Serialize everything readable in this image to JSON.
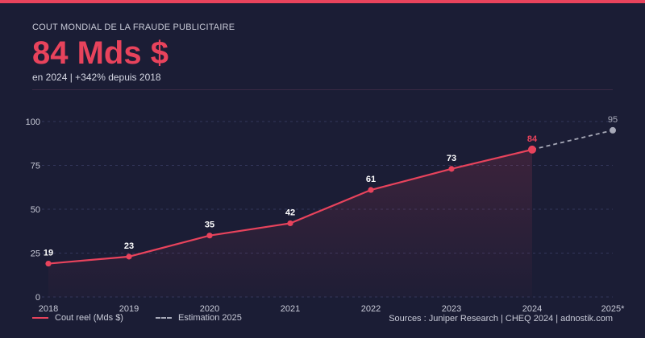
{
  "header": {
    "kicker": "COUT MONDIAL DE LA FRAUDE PUBLICITAIRE",
    "headline": "84 Mds $",
    "subline": "en 2024  |  +342% depuis 2018"
  },
  "colors": {
    "accent": "#e8435c",
    "estimate": "#a7a9b8",
    "background": "#1b1d35"
  },
  "legend": {
    "actual_label": "Cout reel (Mds $)",
    "estimate_label": "Estimation 2025"
  },
  "sources": "Sources : Juniper Research | CHEQ 2024 | adnostik.com",
  "chart_data": {
    "type": "line",
    "x": [
      "2018",
      "2019",
      "2020",
      "2021",
      "2022",
      "2023",
      "2024",
      "2025*"
    ],
    "series": [
      {
        "values": [
          19,
          23,
          35,
          42,
          61,
          73,
          84,
          null
        ]
      },
      {
        "values": [
          null,
          null,
          null,
          null,
          null,
          null,
          84,
          95
        ]
      }
    ],
    "yticks": [
      0,
      25,
      50,
      75,
      100
    ],
    "ylim": [
      0,
      100
    ],
    "grid": true,
    "legend_position": "bottom-left"
  }
}
